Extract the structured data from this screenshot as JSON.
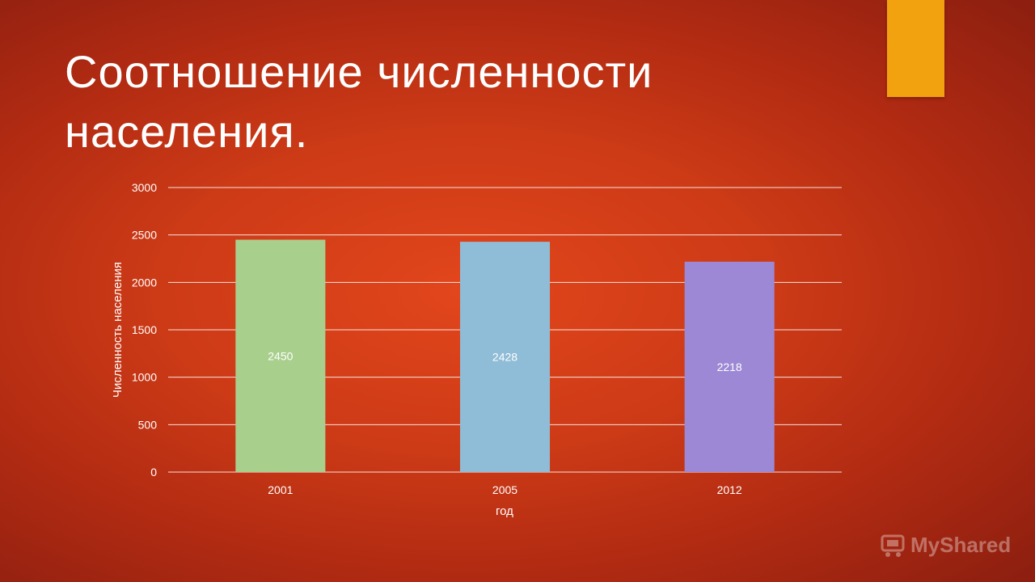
{
  "slide": {
    "title": "Соотношение численности населения.",
    "accent_color": "#f2a20f"
  },
  "chart_data": {
    "type": "bar",
    "categories": [
      "2001",
      "2005",
      "2012"
    ],
    "values": [
      2450,
      2428,
      2218
    ],
    "data_labels": [
      "2450",
      "2428",
      "2218"
    ],
    "bar_colors": [
      "#a9cf8d",
      "#8fbcd6",
      "#9c88d4"
    ],
    "xlabel": "год",
    "ylabel": "Численность населения",
    "ylim": [
      0,
      3000
    ],
    "yticks": [
      0,
      500,
      1000,
      1500,
      2000,
      2500,
      3000
    ],
    "grid": true,
    "legend": "none"
  },
  "watermark": {
    "text": "MyShared",
    "icon": "shopping-cart-logo-icon"
  }
}
